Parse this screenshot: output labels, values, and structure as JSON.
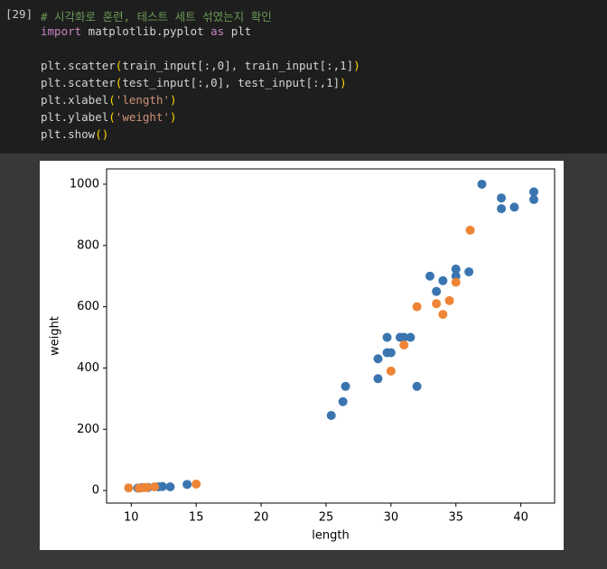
{
  "cell": {
    "prompt": "[29]",
    "lines": [
      [
        "# 시각화로 훈련, 테스트 세트 섞였는지 확인"
      ],
      [
        "import",
        " matplotlib.pyplot ",
        "as",
        " plt"
      ],
      [
        "plt.scatter",
        "(",
        "train_input[:,0], train_input[:,1]",
        ")"
      ],
      [
        "plt.scatter",
        "(",
        "test_input[:,0], test_input[:,1]",
        ")"
      ],
      [
        "plt.xlabel",
        "(",
        "'length'",
        ")"
      ],
      [
        "plt.ylabel",
        "(",
        "'weight'",
        ")"
      ],
      [
        "plt.show",
        "()"
      ]
    ]
  },
  "chart_data": {
    "type": "scatter",
    "xlabel": "length",
    "ylabel": "weight",
    "xlim": [
      8.1,
      42.6
    ],
    "ylim": [
      -41,
      1050
    ],
    "xticks": [
      10,
      15,
      20,
      25,
      30,
      35,
      40
    ],
    "yticks": [
      0,
      200,
      400,
      600,
      800,
      1000
    ],
    "series": [
      {
        "color": "#3a75b0",
        "x": [
          37,
          38.5,
          38.5,
          39.5,
          41,
          41,
          33,
          35,
          35,
          36,
          34,
          33.5,
          29.7,
          30.7,
          31,
          31.5,
          29.7,
          30,
          29,
          29,
          32,
          26.5,
          26.3,
          25.4,
          10.5,
          10.8,
          11.3,
          12.1,
          12.4,
          13,
          14.3
        ],
        "values": [
          1000,
          955,
          920,
          925,
          975,
          950,
          700,
          723,
          700,
          714,
          685,
          650,
          500,
          500,
          500,
          500,
          450,
          450,
          430,
          365,
          340,
          340,
          290,
          245,
          8,
          9,
          10,
          12,
          13,
          12,
          20
        ]
      },
      {
        "color": "#ee8536",
        "x": [
          9.8,
          10.6,
          11,
          11.2,
          11.8,
          15,
          36.1,
          32,
          33.5,
          34.5,
          34,
          35,
          31,
          30
        ],
        "values": [
          8.5,
          7.5,
          10,
          10,
          12,
          21,
          850,
          600,
          610,
          620,
          575,
          680,
          475,
          390
        ]
      }
    ]
  }
}
